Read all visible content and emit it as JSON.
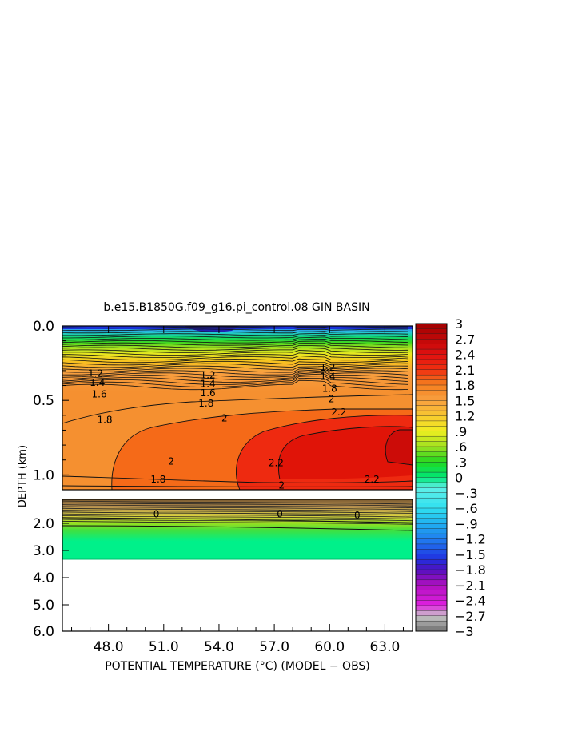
{
  "chart_data": {
    "type": "heatmap",
    "title": "b.e15.B1850G.f09_g16.pi_control.08 GIN BASIN",
    "xlabel": "POTENTIAL TEMPERATURE (°C) (MODEL − OBS)",
    "ylabel": "DEPTH (km)",
    "x_ticks": [
      "48.0",
      "51.0",
      "54.0",
      "57.0",
      "60.0",
      "63.0"
    ],
    "x_tick_values": [
      48,
      51,
      54,
      57,
      60,
      63
    ],
    "xlim": [
      45.5,
      64.5
    ],
    "upper_panel": {
      "ylim": [
        0.0,
        1.1
      ],
      "y_ticks": [
        "0.0",
        "0.5",
        "1.0"
      ],
      "y_tick_values": [
        0.0,
        0.5,
        1.0
      ]
    },
    "lower_panel": {
      "ylim": [
        1.1,
        6.0
      ],
      "y_ticks": [
        "2.0",
        "3.0",
        "4.0",
        "5.0",
        "6.0"
      ],
      "y_tick_values": [
        2.0,
        3.0,
        4.0,
        5.0,
        6.0
      ],
      "data_bottom_depth": 3.35
    },
    "colorbar": {
      "range": [
        -3,
        3
      ],
      "labels": [
        "3",
        "2.7",
        "2.4",
        "2.1",
        "1.8",
        "1.5",
        "1.2",
        ".9",
        ".6",
        ".3",
        "0",
        "−.3",
        "−.6",
        "−.9",
        "−1.2",
        "−1.5",
        "−1.8",
        "−2.1",
        "−2.4",
        "−2.7",
        "−3"
      ]
    },
    "contour_labels": [
      {
        "text": "1.2",
        "x": 47.3,
        "y": 0.32
      },
      {
        "text": "1.4",
        "x": 47.4,
        "y": 0.38
      },
      {
        "text": "1.6",
        "x": 47.5,
        "y": 0.46
      },
      {
        "text": "1.8",
        "x": 47.8,
        "y": 0.63
      },
      {
        "text": "1.2",
        "x": 53.4,
        "y": 0.33
      },
      {
        "text": "1.4",
        "x": 53.4,
        "y": 0.39
      },
      {
        "text": "1.6",
        "x": 53.4,
        "y": 0.45
      },
      {
        "text": "1.8",
        "x": 53.3,
        "y": 0.52
      },
      {
        "text": "2",
        "x": 54.3,
        "y": 0.62
      },
      {
        "text": "2",
        "x": 51.4,
        "y": 0.91
      },
      {
        "text": "1.8",
        "x": 50.7,
        "y": 1.03
      },
      {
        "text": "2.2",
        "x": 57.1,
        "y": 0.92
      },
      {
        "text": "2",
        "x": 57.4,
        "y": 1.07
      },
      {
        "text": "1.2",
        "x": 59.9,
        "y": 0.28
      },
      {
        "text": "1.4",
        "x": 59.9,
        "y": 0.34
      },
      {
        "text": "1.8",
        "x": 60.0,
        "y": 0.42
      },
      {
        "text": "2",
        "x": 60.1,
        "y": 0.49
      },
      {
        "text": "2.2",
        "x": 60.5,
        "y": 0.58
      },
      {
        "text": "2.2",
        "x": 62.3,
        "y": 1.03
      },
      {
        "text": "0",
        "x": 50.6,
        "y": 1.66
      },
      {
        "text": "0",
        "x": 57.3,
        "y": 1.66
      },
      {
        "text": "0",
        "x": 61.5,
        "y": 1.7
      }
    ]
  }
}
